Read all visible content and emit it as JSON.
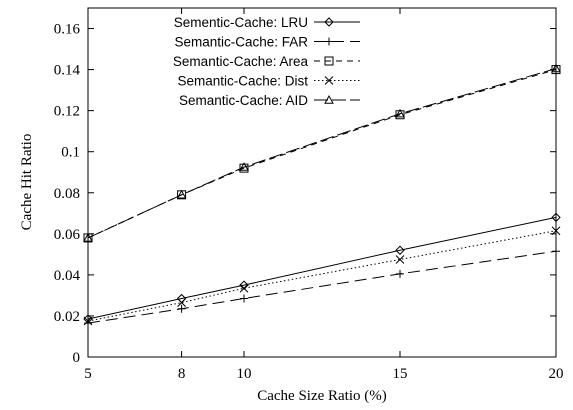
{
  "chart_data": {
    "type": "line",
    "xlabel": "Cache Size Ratio (%)",
    "ylabel": "Cache Hit Ratio",
    "x": [
      5,
      8,
      10,
      15,
      20
    ],
    "xticks": [
      "5",
      "8",
      "10",
      "15",
      "20"
    ],
    "yticks": [
      "0",
      "0.02",
      "0.04",
      "0.06",
      "0.08",
      "0.1",
      "0.12",
      "0.14",
      "0.16"
    ],
    "ylim": [
      0,
      0.17
    ],
    "xlim": [
      5,
      20
    ],
    "grid": false,
    "legend_position": "top-left",
    "series": [
      {
        "name": "Sementic-Cache: LRU",
        "marker": "diamond",
        "dash": "solid",
        "values": [
          0.0185,
          0.0285,
          0.035,
          0.052,
          0.068
        ]
      },
      {
        "name": "Semantic-Cache: FAR",
        "marker": "plus",
        "dash": "long-dash",
        "values": [
          0.0165,
          0.0235,
          0.0285,
          0.0405,
          0.0515
        ]
      },
      {
        "name": "Semantic-Cache: Area",
        "marker": "square",
        "dash": "short-dash",
        "values": [
          0.058,
          0.079,
          0.092,
          0.118,
          0.14
        ]
      },
      {
        "name": "Semantic-Cache: Dist",
        "marker": "cross",
        "dash": "dotted",
        "values": [
          0.0175,
          0.0265,
          0.0335,
          0.0475,
          0.0615
        ]
      },
      {
        "name": "Semantic-Cache: AID",
        "marker": "triangle",
        "dash": "dash-dot",
        "values": [
          0.058,
          0.079,
          0.0925,
          0.1185,
          0.1405
        ]
      }
    ]
  }
}
